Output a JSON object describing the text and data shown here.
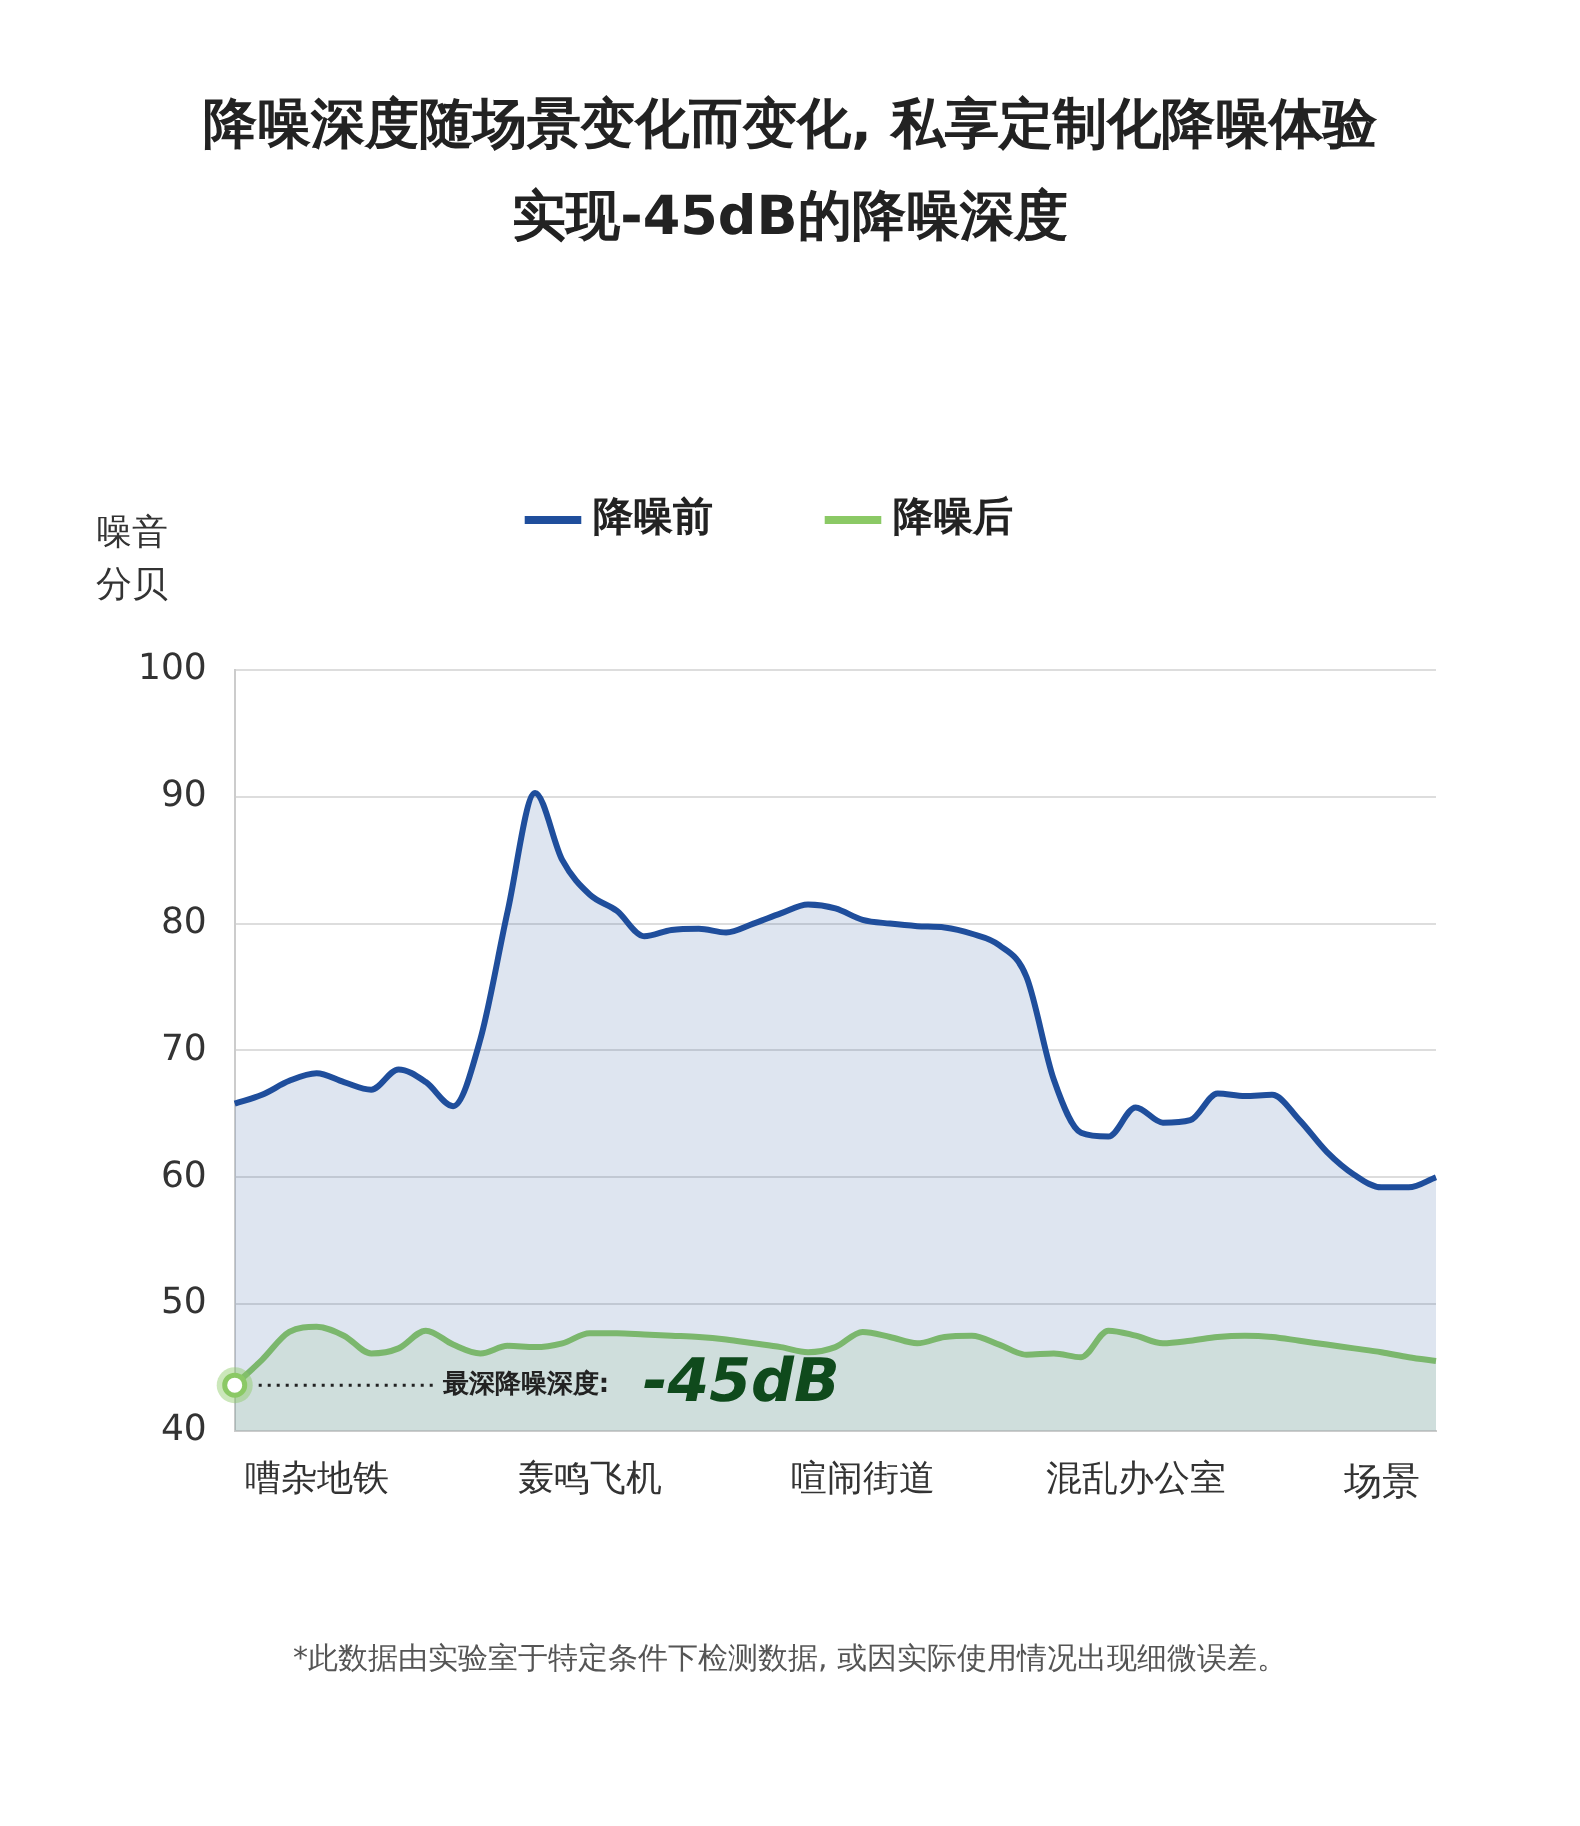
{
  "chart_data": {
    "type": "area",
    "title": "降噪深度随场景变化而变化, 私享定制化降噪体验",
    "subtitle": "实现-45dB的降噪深度",
    "ylabel": "噪音分贝",
    "xlabel": "场景",
    "categories": [
      null,
      null,
      null,
      "嘈杂地铁",
      null,
      null,
      null,
      null,
      null,
      null,
      null,
      null,
      null,
      "轰鸣飞机",
      null,
      null,
      null,
      null,
      null,
      null,
      null,
      null,
      null,
      "喧闹街道",
      null,
      null,
      null,
      null,
      null,
      null,
      null,
      null,
      null,
      "混乱办公室",
      null,
      null,
      null,
      null,
      null,
      null,
      null,
      null,
      null,
      null,
      null
    ],
    "series": [
      {
        "name": "降噪前",
        "color": "#1f4e9c",
        "values": [
          65.8,
          66.5,
          67.6,
          68.2,
          67.5,
          66.9,
          68.5,
          67.5,
          65.6,
          70.9,
          81,
          90.3,
          85,
          82.3,
          81,
          79,
          79.5,
          79.6,
          79.3,
          80,
          80.8,
          81.5,
          81.2,
          80.3,
          80,
          79.8,
          79.7,
          79.2,
          78.3,
          75.8,
          67.7,
          63.5,
          63.2,
          65.5,
          64.3,
          64.5,
          66.6,
          66.4,
          66.5,
          64.5,
          62,
          60.2,
          59.2,
          59.2,
          60
        ]
      },
      {
        "name": "降噪后",
        "color": "#8bc965",
        "values": [
          43.6,
          45.6,
          47.8,
          48.2,
          47.5,
          46.1,
          46.5,
          47.9,
          46.8,
          46.1,
          46.7,
          46.6,
          46.9,
          47.7,
          47.7,
          47.6,
          47.5,
          47.4,
          47.2,
          46.9,
          46.6,
          46.2,
          46.6,
          47.8,
          47.4,
          46.9,
          47.4,
          47.5,
          46.8,
          46,
          46.1,
          45.8,
          47.9,
          47.5,
          46.9,
          47.1,
          47.4,
          47.5,
          47.4,
          47.1,
          46.8,
          46.5,
          46.2,
          45.8,
          45.5
        ]
      }
    ],
    "ylim": [
      40,
      100
    ],
    "yticks": [
      40,
      50,
      60,
      70,
      80,
      90,
      100
    ],
    "grid": "y",
    "legend": "top",
    "ref_lines": [
      {
        "axis": "y",
        "value": 43.6,
        "label": "最深降噪深度:",
        "color": "#222222",
        "line_style": "dotted"
      }
    ],
    "annotations": [
      "-45dB",
      "*此数据由实验室于特定条件下检测数据, 或因实际使用情况出现细微误差。"
    ]
  }
}
